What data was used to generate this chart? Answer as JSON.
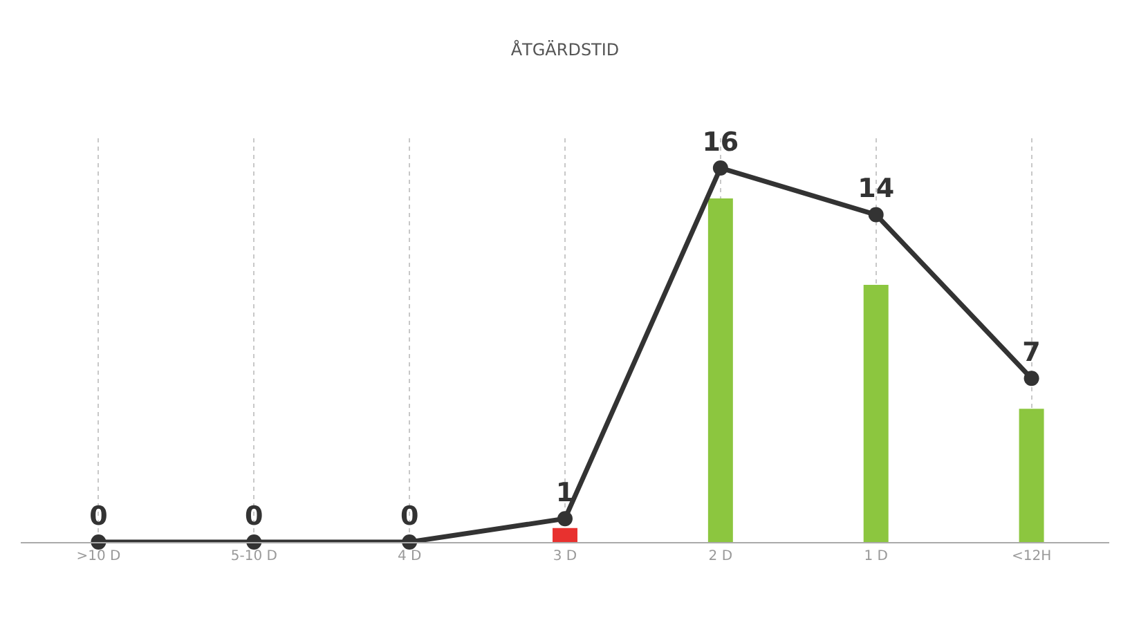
{
  "chart_data": {
    "type": "bar",
    "title": "ÅTGÄRDSTID",
    "categories": [
      ">10 D",
      "5-10 D",
      "4 D",
      "3 D",
      "2 D",
      "1 D",
      "<12H"
    ],
    "series": [
      {
        "colors": [
          "#8cc63f",
          "#8cc63f",
          "#8cc63f",
          "#e8312f",
          "#8cc63f",
          "#8cc63f",
          "#8cc63f"
        ],
        "values": [
          0,
          0,
          0,
          0.6,
          14.7,
          11,
          5.7
        ]
      },
      {
        "type": "line",
        "color": "#333333",
        "values": [
          0,
          0,
          0,
          1,
          16,
          14,
          7
        ],
        "value_labels": [
          "0",
          "0",
          "0",
          "1",
          "16",
          "14",
          "7"
        ]
      }
    ],
    "grid": "x",
    "legend": false,
    "marker": "circle",
    "line_style": "solid",
    "tick_labels": "x"
  }
}
